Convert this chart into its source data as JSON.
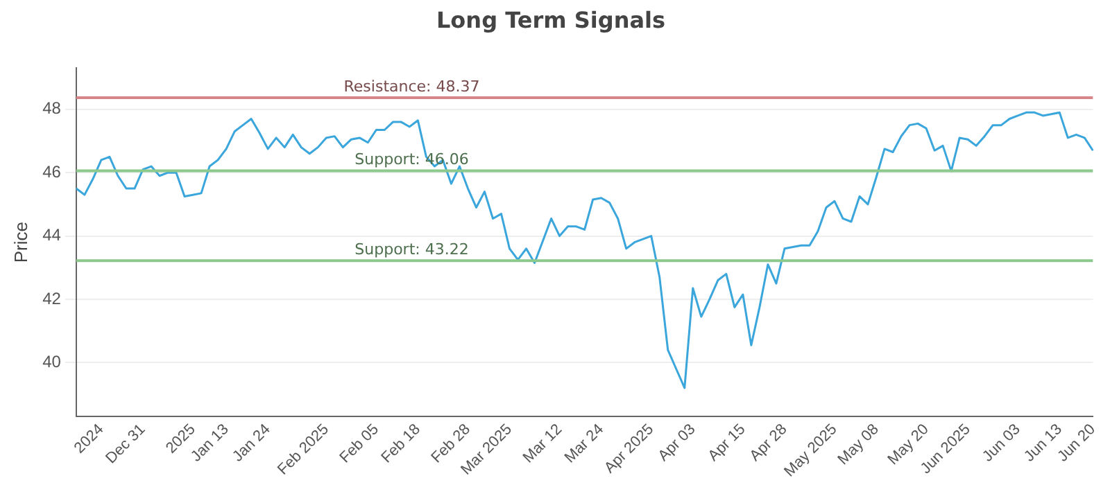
{
  "chart_data": {
    "type": "line",
    "title": "Long Term Signals",
    "ylabel": "Price",
    "categories": [
      null,
      null,
      null,
      "2024",
      null,
      null,
      null,
      null,
      "Dec 31",
      null,
      null,
      null,
      null,
      null,
      "2025",
      null,
      null,
      null,
      "Jan 13",
      null,
      null,
      null,
      null,
      "Jan 24",
      null,
      null,
      null,
      null,
      null,
      null,
      "Feb 2025",
      null,
      null,
      null,
      null,
      null,
      "Feb 05",
      null,
      null,
      null,
      null,
      "Feb 18",
      null,
      null,
      null,
      null,
      null,
      "Feb 28",
      null,
      null,
      null,
      null,
      "Mar 2025",
      null,
      null,
      null,
      null,
      null,
      "Mar 12",
      null,
      null,
      null,
      null,
      "Mar 24",
      null,
      null,
      null,
      null,
      null,
      "Apr 2025",
      null,
      null,
      null,
      null,
      "Apr 03",
      null,
      null,
      null,
      null,
      null,
      "Apr 15",
      null,
      null,
      null,
      null,
      "Apr 28",
      null,
      null,
      null,
      null,
      null,
      "May 2025",
      null,
      null,
      null,
      null,
      "May 08",
      null,
      null,
      null,
      null,
      null,
      "May 20",
      null,
      null,
      null,
      null,
      "Jun 2025",
      null,
      null,
      null,
      null,
      null,
      "Jun 03",
      null,
      null,
      null,
      null,
      "Jun 13",
      null,
      null,
      null,
      "Jun 20"
    ],
    "series": [
      {
        "color": "#3aa6dc",
        "values": [
          45.5,
          45.3,
          45.8,
          46.4,
          46.5,
          45.9,
          45.5,
          45.5,
          46.1,
          46.2,
          45.9,
          46.0,
          46.0,
          45.25,
          45.3,
          45.35,
          46.2,
          46.4,
          46.75,
          47.3,
          47.5,
          47.7,
          47.25,
          46.75,
          47.1,
          46.8,
          47.2,
          46.8,
          46.6,
          46.8,
          47.1,
          47.15,
          46.8,
          47.05,
          47.1,
          46.95,
          47.35,
          47.35,
          47.6,
          47.6,
          47.45,
          47.65,
          46.5,
          46.2,
          46.4,
          45.65,
          46.2,
          45.5,
          44.9,
          45.4,
          44.55,
          44.7,
          43.6,
          43.25,
          43.6,
          43.15,
          43.85,
          44.55,
          44.0,
          44.3,
          44.3,
          44.2,
          45.15,
          45.2,
          45.05,
          44.55,
          43.6,
          43.8,
          43.9,
          44.0,
          42.7,
          40.4,
          39.8,
          39.2,
          42.35,
          41.45,
          42.0,
          42.6,
          42.8,
          41.75,
          42.15,
          40.55,
          41.75,
          43.1,
          42.5,
          43.6,
          43.65,
          43.7,
          43.7,
          44.15,
          44.9,
          45.1,
          44.55,
          44.45,
          45.25,
          45.0,
          45.85,
          46.75,
          46.65,
          47.15,
          47.5,
          47.55,
          47.4,
          46.7,
          46.85,
          46.05,
          47.1,
          47.05,
          46.85,
          47.15,
          47.5,
          47.5,
          47.7,
          47.8,
          47.9,
          47.9,
          47.8,
          47.85,
          47.9,
          47.1,
          47.2,
          47.1,
          46.7
        ]
      }
    ],
    "ylim": [
      38.3,
      49.3
    ],
    "yticks": [
      40,
      42,
      44,
      46,
      48
    ],
    "grid": "y",
    "legend": false,
    "marker": "none",
    "ref_lines": [
      {
        "axis": "y",
        "value": 48.37,
        "label": "Resistance: 48.37",
        "color": "#d9868a"
      },
      {
        "axis": "y",
        "value": 46.06,
        "label": "Support: 46.06",
        "color": "#8cc98c"
      },
      {
        "axis": "y",
        "value": 43.22,
        "label": "Support: 43.22",
        "color": "#8cc98c"
      }
    ]
  }
}
